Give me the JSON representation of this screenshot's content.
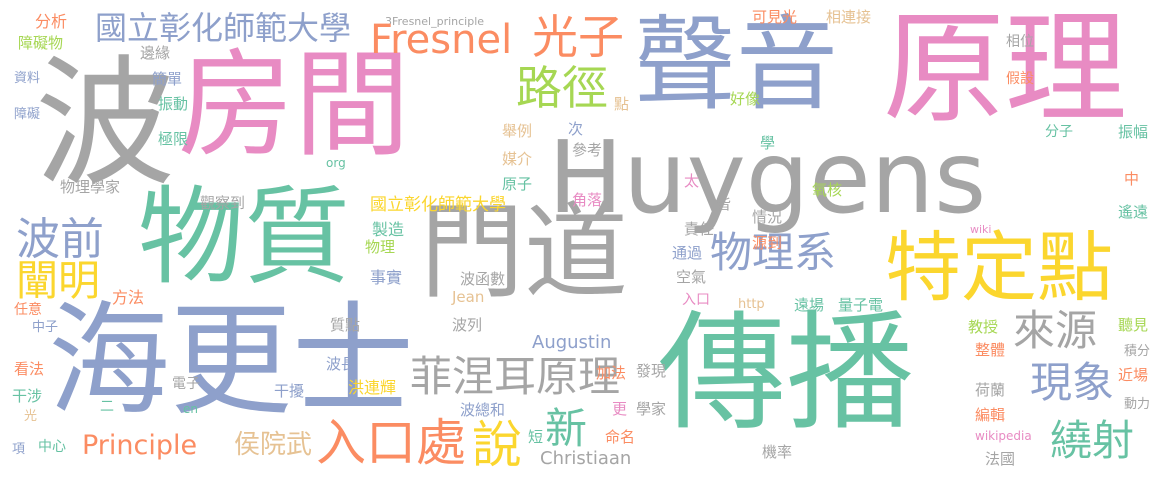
{
  "title": "3Fresnel_principle",
  "palette": {
    "gray": "#a5a5a5",
    "pink": "#e88bc3",
    "blue": "#8ea0cb",
    "green": "#67c2a3",
    "yellow": "#fbd62e",
    "orange": "#fb8c62",
    "lime": "#a6d753",
    "tan": "#e6c293"
  },
  "words": [
    {
      "text": "Huygens",
      "color": "gray"
    },
    {
      "text": "傳播",
      "color": "green"
    },
    {
      "text": "海更士",
      "color": "blue"
    },
    {
      "text": "房間",
      "color": "pink"
    },
    {
      "text": "原理",
      "color": "pink"
    },
    {
      "text": "聲音",
      "color": "blue"
    },
    {
      "text": "波",
      "color": "gray"
    },
    {
      "text": "物質",
      "color": "green"
    },
    {
      "text": "門道",
      "color": "gray"
    },
    {
      "text": "特定點",
      "color": "yellow"
    },
    {
      "text": "菲涅耳原理",
      "color": "gray"
    },
    {
      "text": "入口處",
      "color": "orange"
    },
    {
      "text": "說",
      "color": "yellow"
    },
    {
      "text": "物理系",
      "color": "blue"
    },
    {
      "text": "來源",
      "color": "gray"
    },
    {
      "text": "Fresnel",
      "color": "orange"
    },
    {
      "text": "光子",
      "color": "orange"
    },
    {
      "text": "國立彰化師範大學",
      "color": "blue"
    },
    {
      "text": "路徑",
      "color": "lime"
    },
    {
      "text": "波前",
      "color": "blue"
    },
    {
      "text": "闡明",
      "color": "yellow"
    },
    {
      "text": "現象",
      "color": "blue"
    },
    {
      "text": "繞射",
      "color": "green"
    },
    {
      "text": "新",
      "color": "green"
    },
    {
      "text": "Principle",
      "color": "orange"
    },
    {
      "text": "侯院武",
      "color": "tan"
    },
    {
      "text": "Christiaan",
      "color": "gray"
    },
    {
      "text": "Augustin",
      "color": "blue"
    },
    {
      "text": "國立彰化師範大學",
      "color": "yellow"
    },
    {
      "text": "製造",
      "color": "green"
    },
    {
      "text": "物理",
      "color": "lime"
    },
    {
      "text": "事實",
      "color": "blue"
    },
    {
      "text": "方法",
      "color": "orange"
    },
    {
      "text": "Jean",
      "color": "tan"
    },
    {
      "text": "波函數",
      "color": "gray"
    },
    {
      "text": "波列",
      "color": "gray"
    },
    {
      "text": "質點",
      "color": "gray"
    },
    {
      "text": "波長",
      "color": "blue"
    },
    {
      "text": "洪連輝",
      "color": "yellow"
    },
    {
      "text": "干擾",
      "color": "blue"
    },
    {
      "text": "波總和",
      "color": "blue"
    },
    {
      "text": "加法",
      "color": "orange"
    },
    {
      "text": "發現",
      "color": "gray"
    },
    {
      "text": "更",
      "color": "pink"
    },
    {
      "text": "學家",
      "color": "gray"
    },
    {
      "text": "命名",
      "color": "orange"
    },
    {
      "text": "短",
      "color": "green"
    },
    {
      "text": "機率",
      "color": "gray"
    },
    {
      "text": "法國",
      "color": "gray"
    },
    {
      "text": "荷蘭",
      "color": "gray"
    },
    {
      "text": "編輯",
      "color": "orange"
    },
    {
      "text": "wikipedia",
      "color": "pink"
    },
    {
      "text": "整體",
      "color": "orange"
    },
    {
      "text": "教授",
      "color": "lime"
    },
    {
      "text": "遠場",
      "color": "green"
    },
    {
      "text": "量子電",
      "color": "green"
    },
    {
      "text": "http",
      "color": "tan"
    },
    {
      "text": "入口",
      "color": "pink"
    },
    {
      "text": "空氣",
      "color": "gray"
    },
    {
      "text": "通過",
      "color": "blue"
    },
    {
      "text": "責任",
      "color": "gray"
    },
    {
      "text": "源到",
      "color": "orange"
    },
    {
      "text": "情況",
      "color": "gray"
    },
    {
      "text": "角落",
      "color": "pink"
    },
    {
      "text": "氧核",
      "color": "lime"
    },
    {
      "text": "皆",
      "color": "gray"
    },
    {
      "text": "太",
      "color": "pink"
    },
    {
      "text": "原子",
      "color": "green"
    },
    {
      "text": "媒介",
      "color": "tan"
    },
    {
      "text": "參考",
      "color": "gray"
    },
    {
      "text": "次",
      "color": "blue"
    },
    {
      "text": "舉例",
      "color": "tan"
    },
    {
      "text": "點",
      "color": "tan"
    },
    {
      "text": "好像",
      "color": "lime"
    },
    {
      "text": "學",
      "color": "green"
    },
    {
      "text": "可見光",
      "color": "orange"
    },
    {
      "text": "相連接",
      "color": "tan"
    },
    {
      "text": "相位",
      "color": "gray"
    },
    {
      "text": "假設",
      "color": "orange"
    },
    {
      "text": "分子",
      "color": "green"
    },
    {
      "text": "振幅",
      "color": "green"
    },
    {
      "text": "中",
      "color": "orange"
    },
    {
      "text": "遙遠",
      "color": "green"
    },
    {
      "text": "wiki",
      "color": "pink"
    },
    {
      "text": "聽見",
      "color": "lime"
    },
    {
      "text": "積分",
      "color": "gray"
    },
    {
      "text": "近場",
      "color": "orange"
    },
    {
      "text": "動力",
      "color": "gray"
    },
    {
      "text": "分析",
      "color": "orange"
    },
    {
      "text": "障礙物",
      "color": "lime"
    },
    {
      "text": "資料",
      "color": "blue"
    },
    {
      "text": "障礙",
      "color": "blue"
    },
    {
      "text": "邊緣",
      "color": "gray"
    },
    {
      "text": "簡單",
      "color": "blue"
    },
    {
      "text": "振動",
      "color": "green"
    },
    {
      "text": "極限",
      "color": "green"
    },
    {
      "text": "org",
      "color": "green"
    },
    {
      "text": "物理學家",
      "color": "gray"
    },
    {
      "text": "觀察到",
      "color": "gray"
    },
    {
      "text": "任意",
      "color": "orange"
    },
    {
      "text": "中子",
      "color": "blue"
    },
    {
      "text": "看法",
      "color": "orange"
    },
    {
      "text": "干涉",
      "color": "green"
    },
    {
      "text": "光",
      "color": "tan"
    },
    {
      "text": "項",
      "color": "blue"
    },
    {
      "text": "中心",
      "color": "green"
    },
    {
      "text": "電子",
      "color": "gray"
    },
    {
      "text": "二",
      "color": "green"
    },
    {
      "text": "en",
      "color": "green"
    }
  ]
}
